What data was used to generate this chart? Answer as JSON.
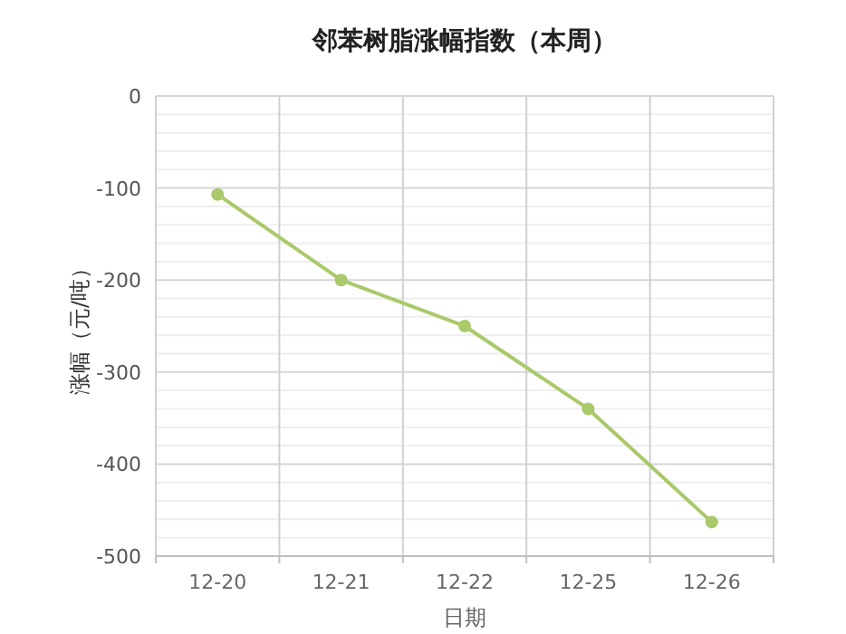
{
  "chart_data": {
    "type": "line",
    "title": "邻苯树脂涨幅指数（本周）",
    "xlabel": "日期",
    "ylabel": "涨幅（元/吨）",
    "categories": [
      "12-20",
      "12-21",
      "12-22",
      "12-25",
      "12-26"
    ],
    "series": [
      {
        "color": "#a9c96a",
        "values": [
          -107,
          -200,
          -250,
          -340,
          -463
        ]
      }
    ],
    "ylim": [
      -500,
      0
    ],
    "yticks": [
      -500,
      {
        "value": -480,
        "label": null
      },
      {
        "value": -460,
        "label": null
      },
      {
        "value": -440,
        "label": null
      },
      {
        "value": -420,
        "label": null
      },
      -400,
      {
        "value": -380,
        "label": null
      },
      {
        "value": -360,
        "label": null
      },
      {
        "value": -340,
        "label": null
      },
      {
        "value": -320,
        "label": null
      },
      -300,
      {
        "value": -280,
        "label": null
      },
      {
        "value": -260,
        "label": null
      },
      {
        "value": -240,
        "label": null
      },
      {
        "value": -220,
        "label": null
      },
      -200,
      {
        "value": -180,
        "label": null
      },
      {
        "value": -160,
        "label": null
      },
      {
        "value": -140,
        "label": null
      },
      {
        "value": -120,
        "label": null
      },
      -100,
      {
        "value": -80,
        "label": null
      },
      {
        "value": -60,
        "label": null
      },
      {
        "value": -40,
        "label": null
      },
      {
        "value": -20,
        "label": null
      },
      0
    ],
    "grid": true,
    "marker": "circle",
    "line_style": "solid"
  }
}
